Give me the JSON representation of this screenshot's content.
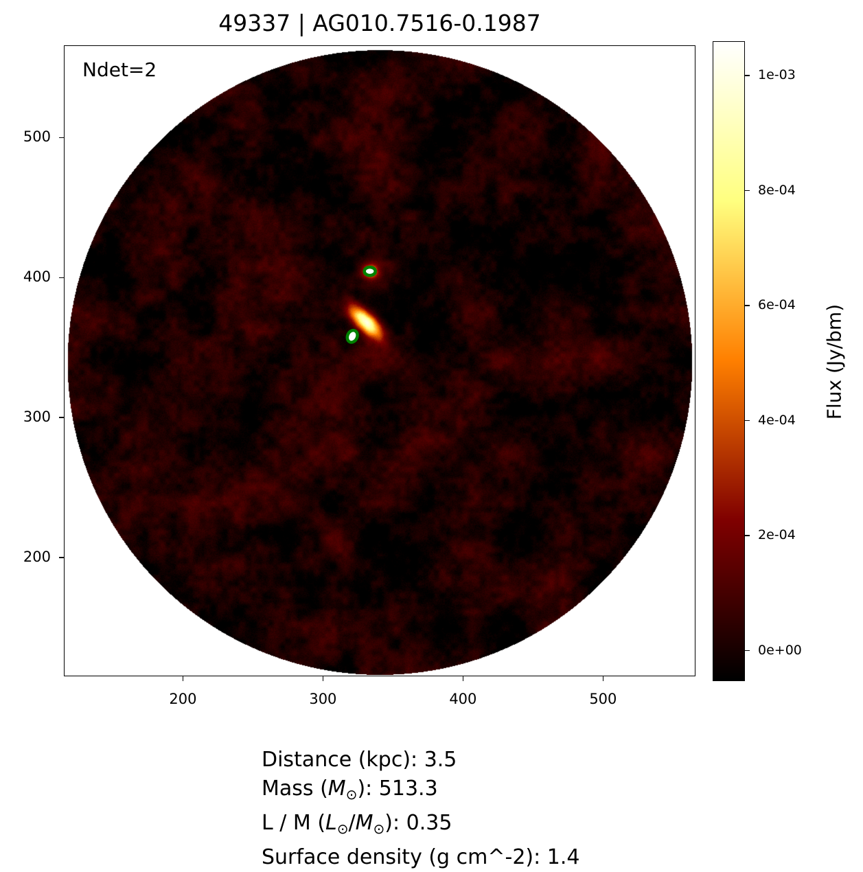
{
  "chart_data": {
    "type": "heatmap",
    "title": "49337 | AG010.7516-0.1987",
    "annotation": "Ndet=2",
    "xlim": [
      115,
      566
    ],
    "ylim": [
      115,
      566
    ],
    "x_ticks": [
      "200",
      "300",
      "400",
      "500"
    ],
    "x_tick_values": [
      200,
      300,
      400,
      500
    ],
    "y_ticks": [
      "200",
      "300",
      "400",
      "500"
    ],
    "y_tick_values": [
      200,
      300,
      400,
      500
    ],
    "colormap": "afmhot",
    "image_footprint": {
      "shape": "circle",
      "center": [
        340,
        340
      ],
      "radius": 223
    },
    "colorbar": {
      "label": "Flux (Jy/bm)",
      "range": [
        -5.3e-05,
        0.00106
      ],
      "ticks": [
        "0e+00",
        "2e-04",
        "4e-04",
        "6e-04",
        "8e-04",
        "1e-03"
      ],
      "tick_values": [
        0,
        0.0002,
        0.0004,
        0.0006,
        0.0008,
        0.001
      ]
    },
    "bright_sources": [
      {
        "x": 327,
        "y": 366,
        "peak": 0.00105
      },
      {
        "x": 333,
        "y": 405,
        "peak": 0.0005
      }
    ],
    "detection_contours": {
      "color": "#008000",
      "centers": [
        [
          333,
          405
        ],
        [
          320.5,
          358.5
        ]
      ]
    }
  },
  "info": {
    "distance": {
      "label": "Distance (kpc): ",
      "value": "3.5"
    },
    "mass": {
      "pre": "Mass (",
      "sym": "M",
      "sun": "⊙",
      "post": "): ",
      "value": "513.3"
    },
    "lm": {
      "pre": "L / M (",
      "sym1": "L",
      "sun1": "⊙",
      "slash": "/",
      "sym2": "M",
      "sun2": "⊙",
      "post": "): ",
      "value": "0.35"
    },
    "surface_density": {
      "label": "Surface density (g cm^-2): ",
      "value": "1.4"
    }
  }
}
